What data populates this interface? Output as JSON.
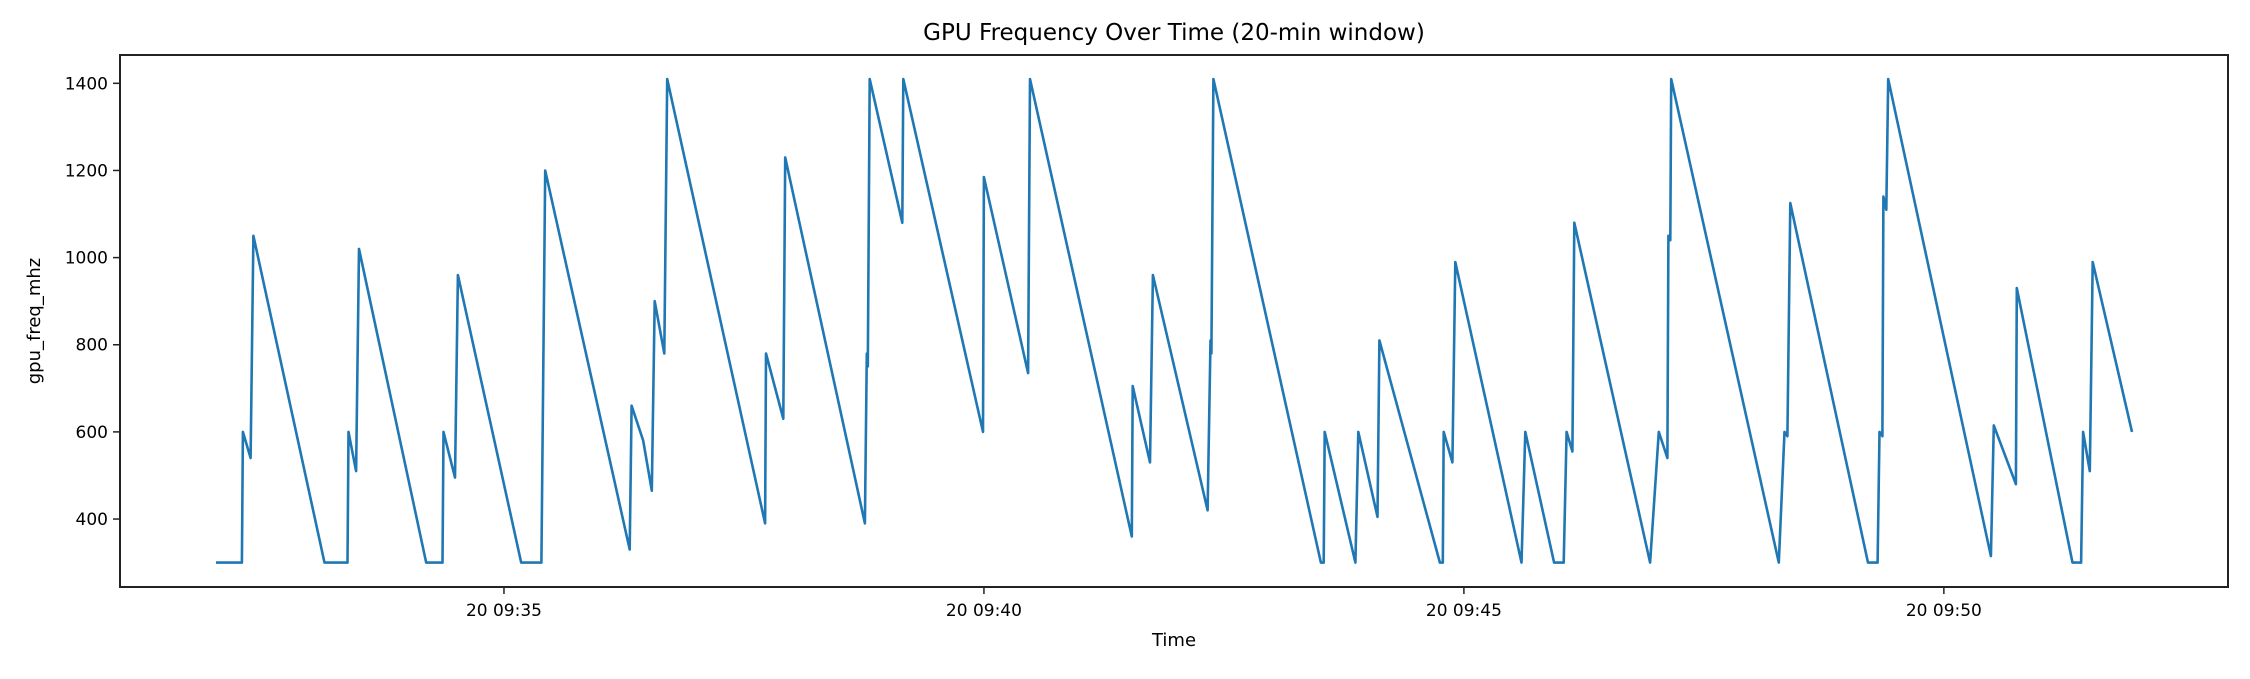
{
  "chart_data": {
    "type": "line",
    "title": "GPU Frequency Over Time (20-min window)",
    "xlabel": "Time",
    "ylabel": "gpu_freq_mhz",
    "x_units": "minutes past 09:00 on day 20",
    "xlim": [
      31.0,
      52.96
    ],
    "ylim": [
      244,
      1465
    ],
    "grid": false,
    "line_color": "#1f77b4",
    "x_ticks": [
      {
        "value": 35,
        "label": "20 09:35"
      },
      {
        "value": 40,
        "label": "20 09:40"
      },
      {
        "value": 45,
        "label": "20 09:45"
      },
      {
        "value": 50,
        "label": "20 09:50"
      }
    ],
    "y_ticks": [
      {
        "value": 400,
        "label": "400"
      },
      {
        "value": 600,
        "label": "600"
      },
      {
        "value": 800,
        "label": "800"
      },
      {
        "value": 1000,
        "label": "1000"
      },
      {
        "value": 1200,
        "label": "1200"
      },
      {
        "value": 1400,
        "label": "1400"
      }
    ],
    "series": [
      {
        "name": "gpu_freq_mhz",
        "points": [
          [
            32.0,
            300
          ],
          [
            32.27,
            300
          ],
          [
            32.28,
            600
          ],
          [
            32.36,
            540
          ],
          [
            32.39,
            1050
          ],
          [
            33.13,
            300
          ],
          [
            33.37,
            300
          ],
          [
            33.38,
            600
          ],
          [
            33.46,
            510
          ],
          [
            33.49,
            1020
          ],
          [
            34.19,
            300
          ],
          [
            34.36,
            300
          ],
          [
            34.37,
            600
          ],
          [
            34.49,
            495
          ],
          [
            34.52,
            960
          ],
          [
            35.18,
            300
          ],
          [
            35.39,
            300
          ],
          [
            35.43,
            1200
          ],
          [
            36.31,
            330
          ],
          [
            36.33,
            660
          ],
          [
            36.45,
            580
          ],
          [
            36.54,
            465
          ],
          [
            36.57,
            900
          ],
          [
            36.67,
            780
          ],
          [
            36.7,
            1410
          ],
          [
            37.72,
            390
          ],
          [
            37.73,
            780
          ],
          [
            37.91,
            630
          ],
          [
            37.93,
            1230
          ],
          [
            38.76,
            390
          ],
          [
            38.78,
            780
          ],
          [
            38.79,
            750
          ],
          [
            38.81,
            1410
          ],
          [
            39.15,
            1080
          ],
          [
            39.16,
            1410
          ],
          [
            39.99,
            600
          ],
          [
            40.0,
            1185
          ],
          [
            40.46,
            735
          ],
          [
            40.48,
            1410
          ],
          [
            41.54,
            360
          ],
          [
            41.55,
            705
          ],
          [
            41.73,
            530
          ],
          [
            41.76,
            960
          ],
          [
            42.33,
            420
          ],
          [
            42.36,
            810
          ],
          [
            42.37,
            780
          ],
          [
            42.39,
            1410
          ],
          [
            43.51,
            300
          ],
          [
            43.54,
            300
          ],
          [
            43.55,
            600
          ],
          [
            43.87,
            300
          ],
          [
            43.9,
            600
          ],
          [
            44.1,
            405
          ],
          [
            44.12,
            810
          ],
          [
            44.75,
            300
          ],
          [
            44.78,
            300
          ],
          [
            44.79,
            600
          ],
          [
            44.88,
            530
          ],
          [
            44.91,
            990
          ],
          [
            45.6,
            300
          ],
          [
            45.64,
            600
          ],
          [
            45.94,
            300
          ],
          [
            46.04,
            300
          ],
          [
            46.07,
            600
          ],
          [
            46.13,
            555
          ],
          [
            46.15,
            1080
          ],
          [
            46.94,
            300
          ],
          [
            47.03,
            600
          ],
          [
            47.12,
            540
          ],
          [
            47.13,
            1050
          ],
          [
            47.15,
            1040
          ],
          [
            47.16,
            1410
          ],
          [
            48.28,
            300
          ],
          [
            48.34,
            600
          ],
          [
            48.37,
            590
          ],
          [
            48.4,
            1125
          ],
          [
            49.21,
            300
          ],
          [
            49.31,
            300
          ],
          [
            49.33,
            600
          ],
          [
            49.36,
            590
          ],
          [
            49.37,
            1140
          ],
          [
            49.4,
            1110
          ],
          [
            49.42,
            1410
          ],
          [
            50.49,
            315
          ],
          [
            50.52,
            615
          ],
          [
            50.75,
            480
          ],
          [
            50.76,
            930
          ],
          [
            51.34,
            300
          ],
          [
            51.43,
            300
          ],
          [
            51.45,
            600
          ],
          [
            51.52,
            510
          ],
          [
            51.55,
            990
          ],
          [
            51.96,
            600
          ]
        ]
      }
    ]
  }
}
